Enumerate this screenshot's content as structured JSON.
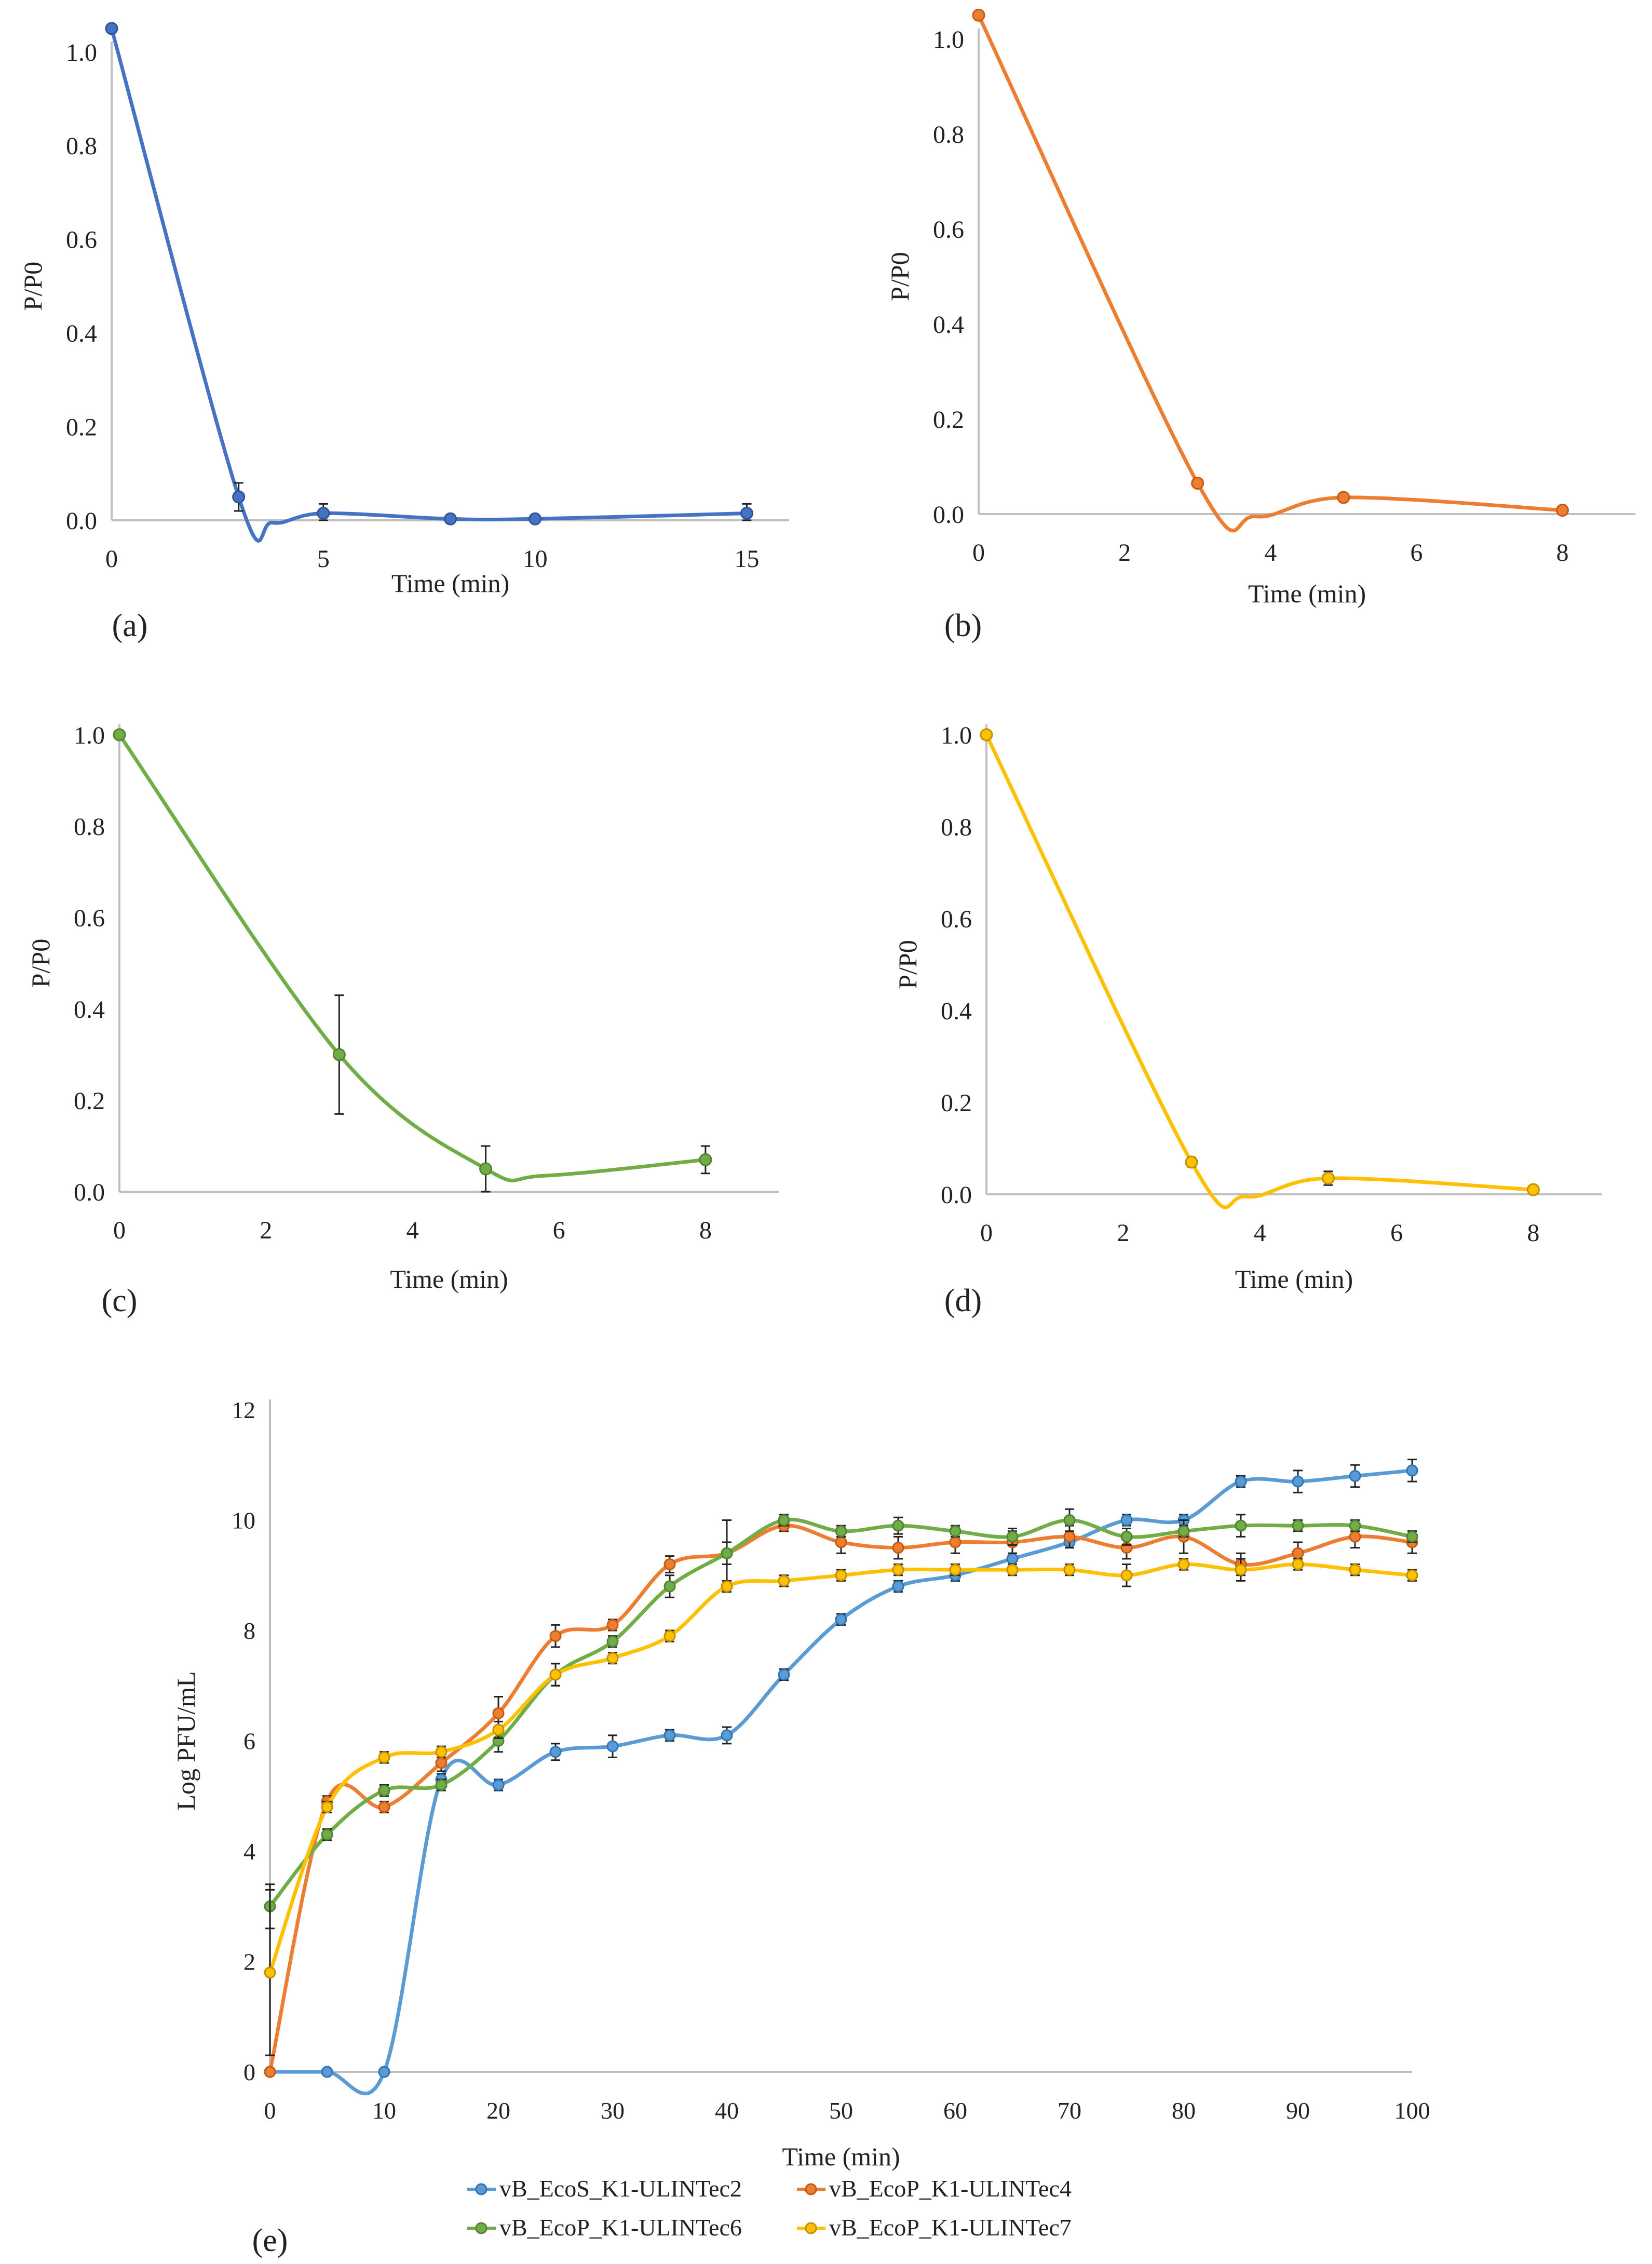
{
  "chart_data": [
    {
      "id": "a",
      "type": "line",
      "panel_label": "(a)",
      "title": "",
      "xlabel": "Time (min)",
      "ylabel": "P/P0",
      "xlim": [
        0,
        16
      ],
      "ylim": [
        0,
        1.0
      ],
      "xticks": [
        0,
        5,
        10,
        15
      ],
      "yticks": [
        0.0,
        0.2,
        0.4,
        0.6,
        0.8,
        1.0
      ],
      "ytick_labels": [
        "0.0",
        "0.2",
        "0.4",
        "0.6",
        "0.8",
        "1.0"
      ],
      "grid": false,
      "series": [
        {
          "name": "panel-a",
          "color": "#4472c4",
          "marker_color": "#2f5597",
          "x": [
            0,
            3,
            5,
            8,
            10,
            15
          ],
          "y": [
            1.05,
            0.05,
            0.015,
            0.003,
            0.003,
            0.015
          ],
          "err": [
            0,
            0.03,
            0.02,
            0.005,
            0.005,
            0.02
          ],
          "smooth_dip": [
            3.8,
            -0.005
          ]
        }
      ]
    },
    {
      "id": "b",
      "type": "line",
      "panel_label": "(b)",
      "title": "",
      "xlabel": "Time (min)",
      "ylabel": "P/P0",
      "xlim": [
        0,
        9
      ],
      "ylim": [
        0,
        1.0
      ],
      "xticks": [
        0,
        2,
        4,
        6,
        8
      ],
      "yticks": [
        0.0,
        0.2,
        0.4,
        0.6,
        0.8,
        1.0
      ],
      "ytick_labels": [
        "0.0",
        "0.2",
        "0.4",
        "0.6",
        "0.8",
        "1.0"
      ],
      "grid": false,
      "series": [
        {
          "name": "panel-b",
          "color": "#ed7d31",
          "marker_color": "#c55a11",
          "x": [
            0,
            3,
            5,
            8
          ],
          "y": [
            1.05,
            0.065,
            0.035,
            0.008
          ],
          "err": [
            0,
            0,
            0,
            0
          ],
          "smooth_dip": [
            3.8,
            -0.005
          ]
        }
      ]
    },
    {
      "id": "c",
      "type": "line",
      "panel_label": "(c)",
      "title": "",
      "xlabel": "Time (min)",
      "ylabel": "P/P0",
      "xlim": [
        0,
        9
      ],
      "ylim": [
        0,
        1.0
      ],
      "xticks": [
        0,
        2,
        4,
        6,
        8
      ],
      "yticks": [
        0.0,
        0.2,
        0.4,
        0.6,
        0.8,
        1.0
      ],
      "ytick_labels": [
        "0.0",
        "0.2",
        "0.4",
        "0.6",
        "0.8",
        "1.0"
      ],
      "grid": false,
      "series": [
        {
          "name": "panel-c",
          "color": "#70ad47",
          "marker_color": "#548235",
          "x": [
            0,
            3,
            5,
            8
          ],
          "y": [
            1.0,
            0.3,
            0.05,
            0.07
          ],
          "err": [
            0,
            0.13,
            0.05,
            0.03
          ],
          "smooth_dip": [
            5.8,
            0.035
          ]
        }
      ]
    },
    {
      "id": "d",
      "type": "line",
      "panel_label": "(d)",
      "title": "",
      "xlabel": "Time (min)",
      "ylabel": "P/P0",
      "xlim": [
        0,
        9
      ],
      "ylim": [
        0,
        1.0
      ],
      "xticks": [
        0,
        2,
        4,
        6,
        8
      ],
      "yticks": [
        0.0,
        0.2,
        0.4,
        0.6,
        0.8,
        1.0
      ],
      "ytick_labels": [
        "0.0",
        "0.2",
        "0.4",
        "0.6",
        "0.8",
        "1.0"
      ],
      "grid": false,
      "series": [
        {
          "name": "panel-d",
          "color": "#ffc000",
          "marker_color": "#bf9000",
          "x": [
            0,
            3,
            5,
            8
          ],
          "y": [
            1.0,
            0.07,
            0.035,
            0.01
          ],
          "err": [
            0,
            0.01,
            0.015,
            0.005
          ],
          "smooth_dip": [
            3.8,
            -0.005
          ]
        }
      ]
    },
    {
      "id": "e",
      "type": "line",
      "panel_label": "(e)",
      "title": "",
      "xlabel": "Time (min)",
      "ylabel": "Log PFU/mL",
      "xlim": [
        0,
        100
      ],
      "ylim": [
        0,
        12
      ],
      "xticks": [
        0,
        10,
        20,
        30,
        40,
        50,
        60,
        70,
        80,
        90,
        100
      ],
      "yticks": [
        0,
        2,
        4,
        6,
        8,
        10,
        12
      ],
      "ytick_labels": [
        "0",
        "2",
        "4",
        "6",
        "8",
        "10",
        "12"
      ],
      "grid": false,
      "legend": "bottom",
      "series": [
        {
          "name": "vB_EcoS_K1-ULINTec2",
          "color": "#5b9bd5",
          "marker_color": "#2e75b6",
          "x": [
            0,
            5,
            10,
            15,
            20,
            25,
            30,
            35,
            40,
            45,
            50,
            55,
            60,
            65,
            70,
            75,
            80,
            85,
            90,
            95,
            100
          ],
          "y": [
            0,
            0,
            0,
            5.3,
            5.2,
            5.8,
            5.9,
            6.1,
            6.1,
            7.2,
            8.2,
            8.8,
            9.0,
            9.3,
            9.6,
            10.0,
            10.0,
            10.7,
            10.7,
            10.8,
            10.9
          ],
          "err": [
            0,
            0,
            0,
            0.1,
            0.1,
            0.15,
            0.2,
            0.1,
            0.15,
            0.1,
            0.1,
            0.1,
            0.1,
            0.1,
            0.1,
            0.1,
            0.1,
            0.1,
            0.2,
            0.2,
            0.2
          ]
        },
        {
          "name": "vB_EcoP_K1-ULINTec4",
          "color": "#ed7d31",
          "marker_color": "#c55a11",
          "x": [
            0,
            5,
            10,
            15,
            20,
            25,
            30,
            35,
            40,
            45,
            50,
            55,
            60,
            65,
            70,
            75,
            80,
            85,
            90,
            95,
            100
          ],
          "y": [
            0,
            4.9,
            4.8,
            5.6,
            6.5,
            7.9,
            8.1,
            9.2,
            9.4,
            9.9,
            9.6,
            9.5,
            9.6,
            9.6,
            9.7,
            9.5,
            9.7,
            9.2,
            9.4,
            9.7,
            9.6
          ],
          "err": [
            0,
            0.1,
            0.1,
            0.15,
            0.3,
            0.2,
            0.1,
            0.15,
            0.2,
            0.1,
            0.2,
            0.2,
            0.2,
            0.2,
            0.2,
            0.2,
            0.3,
            0.2,
            0.2,
            0.2,
            0.2
          ]
        },
        {
          "name": "vB_EcoP_K1-ULINTec6",
          "color": "#70ad47",
          "marker_color": "#548235",
          "x": [
            0,
            5,
            10,
            15,
            20,
            25,
            30,
            35,
            40,
            45,
            50,
            55,
            60,
            65,
            70,
            75,
            80,
            85,
            90,
            95,
            100
          ],
          "y": [
            3.0,
            4.3,
            5.1,
            5.2,
            6.0,
            7.2,
            7.8,
            8.8,
            9.4,
            10.0,
            9.8,
            9.9,
            9.8,
            9.7,
            10.0,
            9.7,
            9.8,
            9.9,
            9.9,
            9.9,
            9.7
          ],
          "err": [
            0.4,
            0.1,
            0.1,
            0.1,
            0.2,
            0.2,
            0.1,
            0.2,
            0.6,
            0.1,
            0.1,
            0.15,
            0.1,
            0.15,
            0.2,
            0.15,
            0.1,
            0.2,
            0.1,
            0.1,
            0.1
          ]
        },
        {
          "name": "vB_EcoP_K1-ULINTec7",
          "color": "#ffc000",
          "marker_color": "#bf9000",
          "x": [
            0,
            5,
            10,
            15,
            20,
            25,
            30,
            35,
            40,
            45,
            50,
            55,
            60,
            65,
            70,
            75,
            80,
            85,
            90,
            95,
            100
          ],
          "y": [
            1.8,
            4.8,
            5.7,
            5.8,
            6.2,
            7.2,
            7.5,
            7.9,
            8.8,
            8.9,
            9.0,
            9.1,
            9.1,
            9.1,
            9.1,
            9.0,
            9.2,
            9.1,
            9.2,
            9.1,
            9.0
          ],
          "err": [
            1.5,
            0.1,
            0.1,
            0.1,
            0.15,
            0.2,
            0.1,
            0.1,
            0.1,
            0.1,
            0.1,
            0.1,
            0.1,
            0.1,
            0.1,
            0.2,
            0.1,
            0.2,
            0.1,
            0.1,
            0.1
          ]
        }
      ]
    }
  ]
}
